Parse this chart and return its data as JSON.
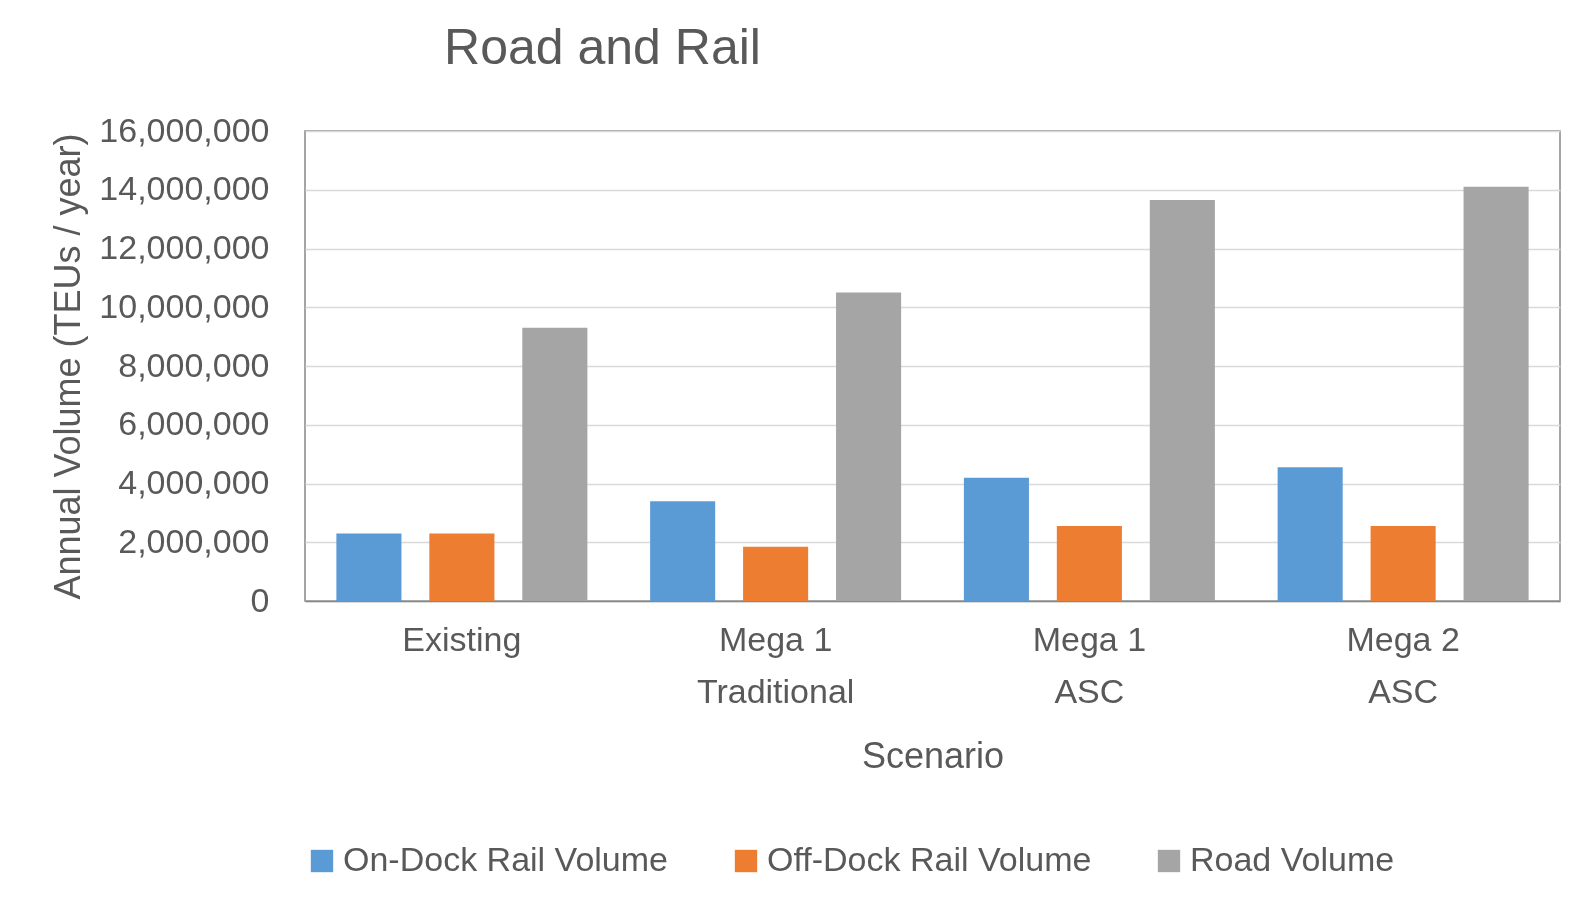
{
  "chart_data": {
    "type": "bar",
    "title": "Road and Rail",
    "xlabel": "Scenario",
    "ylabel": "Annual Volume (TEUs / year)",
    "categories": [
      "Existing",
      "Mega 1\nTraditional",
      "Mega 1\nASC",
      "Mega 2\nASC"
    ],
    "series": [
      {
        "name": "On-Dock Rail Volume",
        "color": "#5b9bd5",
        "values": [
          2300000,
          3400000,
          4200000,
          4550000
        ]
      },
      {
        "name": "Off-Dock Rail Volume",
        "color": "#ed7d31",
        "values": [
          2300000,
          1850000,
          2550000,
          2550000
        ]
      },
      {
        "name": "Road Volume",
        "color": "#a5a5a5",
        "values": [
          9300000,
          10500000,
          13650000,
          14100000
        ]
      }
    ],
    "ylim": [
      0,
      16000000
    ],
    "yticks": [
      0,
      {
        "value": 2000000,
        "label": "2,000,000"
      },
      {
        "value": 4000000,
        "label": "4,000,000"
      },
      {
        "value": 6000000,
        "label": "6,000,000"
      },
      {
        "value": 8000000,
        "label": "8,000,000"
      },
      {
        "value": 10000000,
        "label": "10,000,000"
      },
      {
        "value": 12000000,
        "label": "12,000,000"
      },
      {
        "value": 14000000,
        "label": "14,000,000"
      },
      {
        "value": 16000000,
        "label": "16,000,000"
      }
    ],
    "grid": "y",
    "legend": "bottom"
  }
}
